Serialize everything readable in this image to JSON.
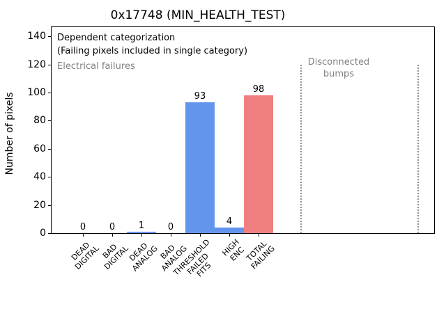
{
  "chart_data": {
    "type": "bar",
    "title": "0x17748 (MIN_HEALTH_TEST)",
    "ylabel": "Number of pixels",
    "xlabel": "",
    "categories": [
      "DEAD\nDIGITAL",
      "BAD\nDIGITAL",
      "DEAD\nANALOG",
      "BAD\nANALOG",
      "THRESHOLD\nFAILED\nFITS",
      "HIGH\nENC",
      "TOTAL\nFAILING"
    ],
    "values": [
      0,
      0,
      1,
      0,
      93,
      4,
      98
    ],
    "value_labels": [
      "0",
      "0",
      "1",
      "0",
      "93",
      "4",
      "98"
    ],
    "bar_colors": [
      "#6495ed",
      "#6495ed",
      "#6495ed",
      "#6495ed",
      "#6495ed",
      "#6495ed",
      "#f08080"
    ],
    "default_bar_color": "#6495ed",
    "total_bar_color": "#f08080",
    "ylim": [
      0,
      147
    ],
    "yticks": [
      0,
      20,
      40,
      60,
      80,
      100,
      120,
      140
    ],
    "grid": false,
    "legend_position": "none",
    "annotations": {
      "dependent_line1": "Dependent categorization",
      "dependent_line2": "(Failing pixels included in single category)",
      "electrical": "Electrical failures",
      "disconnected": "Disconnected\nbumps",
      "annotation_gray": "#808080"
    },
    "separator_lines": {
      "x_units": [
        7.44,
        11.42
      ],
      "top_value": 120,
      "style": "dotted",
      "color": "#909090"
    }
  }
}
